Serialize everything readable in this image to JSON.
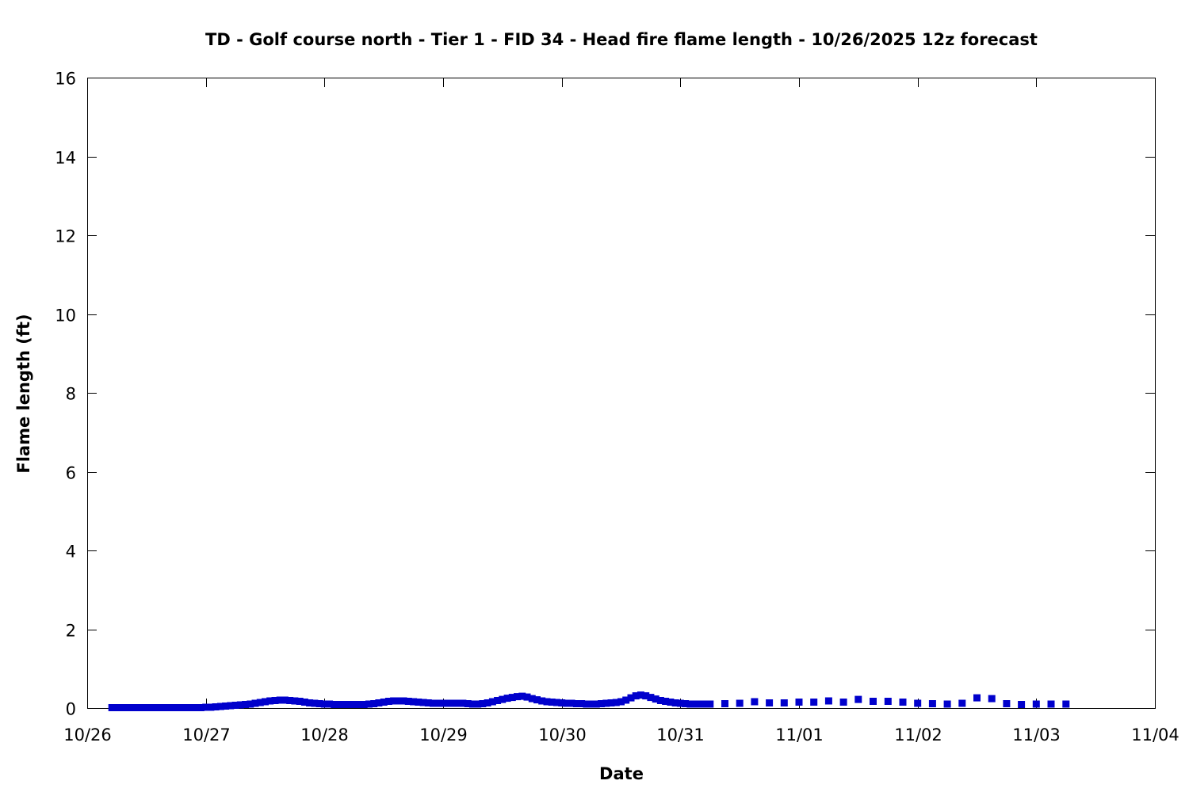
{
  "chart_data": {
    "type": "scatter",
    "title": "TD - Golf course north - Tier 1 - FID 34 - Head fire flame length - 10/26/2025 12z forecast",
    "xlabel": "Date",
    "ylabel": "Flame length (ft)",
    "x_tick_labels": [
      "10/26",
      "10/27",
      "10/28",
      "10/29",
      "10/30",
      "10/31",
      "11/01",
      "11/02",
      "11/03",
      "11/04"
    ],
    "y_tick_labels": [
      "0",
      "2",
      "4",
      "6",
      "8",
      "10",
      "12",
      "14",
      "16"
    ],
    "y_ticks": [
      0,
      2,
      4,
      6,
      8,
      10,
      12,
      14,
      16
    ],
    "xlim": [
      "2025-10-26 00:00",
      "2025-11-04 00:00"
    ],
    "ylim": [
      0,
      16
    ],
    "grid": false,
    "marker_color": "#0000cc",
    "series": [
      {
        "x": [
          "2025-10-26 05:00",
          "2025-10-26 06:00",
          "2025-10-26 07:00",
          "2025-10-26 08:00",
          "2025-10-26 09:00",
          "2025-10-26 10:00",
          "2025-10-26 11:00",
          "2025-10-26 12:00",
          "2025-10-26 13:00",
          "2025-10-26 14:00",
          "2025-10-26 15:00",
          "2025-10-26 16:00",
          "2025-10-26 17:00",
          "2025-10-26 18:00",
          "2025-10-26 19:00",
          "2025-10-26 20:00",
          "2025-10-26 21:00",
          "2025-10-26 22:00",
          "2025-10-26 23:00",
          "2025-10-27 00:00",
          "2025-10-27 01:00",
          "2025-10-27 02:00",
          "2025-10-27 03:00",
          "2025-10-27 04:00",
          "2025-10-27 05:00",
          "2025-10-27 06:00",
          "2025-10-27 07:00",
          "2025-10-27 08:00",
          "2025-10-27 09:00",
          "2025-10-27 10:00",
          "2025-10-27 11:00",
          "2025-10-27 12:00",
          "2025-10-27 13:00",
          "2025-10-27 14:00",
          "2025-10-27 15:00",
          "2025-10-27 16:00",
          "2025-10-27 17:00",
          "2025-10-27 18:00",
          "2025-10-27 19:00",
          "2025-10-27 20:00",
          "2025-10-27 21:00",
          "2025-10-27 22:00",
          "2025-10-27 23:00",
          "2025-10-28 00:00",
          "2025-10-28 01:00",
          "2025-10-28 02:00",
          "2025-10-28 03:00",
          "2025-10-28 04:00",
          "2025-10-28 05:00",
          "2025-10-28 06:00",
          "2025-10-28 07:00",
          "2025-10-28 08:00",
          "2025-10-28 09:00",
          "2025-10-28 10:00",
          "2025-10-28 11:00",
          "2025-10-28 12:00",
          "2025-10-28 13:00",
          "2025-10-28 14:00",
          "2025-10-28 15:00",
          "2025-10-28 16:00",
          "2025-10-28 17:00",
          "2025-10-28 18:00",
          "2025-10-28 19:00",
          "2025-10-28 20:00",
          "2025-10-28 21:00",
          "2025-10-28 22:00",
          "2025-10-28 23:00",
          "2025-10-29 00:00",
          "2025-10-29 01:00",
          "2025-10-29 02:00",
          "2025-10-29 03:00",
          "2025-10-29 04:00",
          "2025-10-29 05:00",
          "2025-10-29 06:00",
          "2025-10-29 07:00",
          "2025-10-29 08:00",
          "2025-10-29 09:00",
          "2025-10-29 10:00",
          "2025-10-29 11:00",
          "2025-10-29 12:00",
          "2025-10-29 13:00",
          "2025-10-29 14:00",
          "2025-10-29 15:00",
          "2025-10-29 16:00",
          "2025-10-29 17:00",
          "2025-10-29 18:00",
          "2025-10-29 19:00",
          "2025-10-29 20:00",
          "2025-10-29 21:00",
          "2025-10-29 22:00",
          "2025-10-29 23:00",
          "2025-10-30 00:00",
          "2025-10-30 01:00",
          "2025-10-30 02:00",
          "2025-10-30 03:00",
          "2025-10-30 04:00",
          "2025-10-30 05:00",
          "2025-10-30 06:00",
          "2025-10-30 07:00",
          "2025-10-30 08:00",
          "2025-10-30 09:00",
          "2025-10-30 10:00",
          "2025-10-30 11:00",
          "2025-10-30 12:00",
          "2025-10-30 13:00",
          "2025-10-30 14:00",
          "2025-10-30 15:00",
          "2025-10-30 16:00",
          "2025-10-30 17:00",
          "2025-10-30 18:00",
          "2025-10-30 19:00",
          "2025-10-30 20:00",
          "2025-10-30 21:00",
          "2025-10-30 22:00",
          "2025-10-30 23:00",
          "2025-10-31 00:00",
          "2025-10-31 01:00",
          "2025-10-31 02:00",
          "2025-10-31 03:00",
          "2025-10-31 04:00",
          "2025-10-31 05:00",
          "2025-10-31 06:00",
          "2025-10-31 09:00",
          "2025-10-31 12:00",
          "2025-10-31 15:00",
          "2025-10-31 18:00",
          "2025-10-31 21:00",
          "2025-11-01 00:00",
          "2025-11-01 03:00",
          "2025-11-01 06:00",
          "2025-11-01 09:00",
          "2025-11-01 12:00",
          "2025-11-01 15:00",
          "2025-11-01 18:00",
          "2025-11-01 21:00",
          "2025-11-02 00:00",
          "2025-11-02 03:00",
          "2025-11-02 06:00",
          "2025-11-02 09:00",
          "2025-11-02 12:00",
          "2025-11-02 15:00",
          "2025-11-02 18:00",
          "2025-11-02 21:00",
          "2025-11-03 00:00",
          "2025-11-03 03:00",
          "2025-11-03 06:00"
        ],
        "y": [
          0.01,
          0.01,
          0.01,
          0.01,
          0.01,
          0.01,
          0.01,
          0.01,
          0.01,
          0.01,
          0.01,
          0.01,
          0.01,
          0.01,
          0.01,
          0.01,
          0.01,
          0.01,
          0.01,
          0.02,
          0.02,
          0.03,
          0.04,
          0.05,
          0.06,
          0.07,
          0.08,
          0.09,
          0.1,
          0.12,
          0.14,
          0.16,
          0.18,
          0.19,
          0.2,
          0.2,
          0.19,
          0.18,
          0.17,
          0.15,
          0.13,
          0.12,
          0.11,
          0.1,
          0.1,
          0.09,
          0.09,
          0.09,
          0.09,
          0.09,
          0.09,
          0.09,
          0.1,
          0.11,
          0.13,
          0.15,
          0.17,
          0.18,
          0.18,
          0.18,
          0.17,
          0.16,
          0.15,
          0.14,
          0.13,
          0.12,
          0.12,
          0.12,
          0.12,
          0.12,
          0.12,
          0.12,
          0.11,
          0.1,
          0.1,
          0.11,
          0.13,
          0.16,
          0.19,
          0.22,
          0.25,
          0.27,
          0.29,
          0.3,
          0.28,
          0.24,
          0.21,
          0.18,
          0.16,
          0.15,
          0.14,
          0.13,
          0.12,
          0.12,
          0.11,
          0.11,
          0.1,
          0.1,
          0.1,
          0.11,
          0.12,
          0.13,
          0.14,
          0.16,
          0.2,
          0.26,
          0.31,
          0.33,
          0.31,
          0.27,
          0.23,
          0.19,
          0.17,
          0.15,
          0.13,
          0.12,
          0.11,
          0.1,
          0.1,
          0.1,
          0.1,
          0.1,
          0.11,
          0.12,
          0.16,
          0.13,
          0.13,
          0.15,
          0.15,
          0.18,
          0.15,
          0.22,
          0.17,
          0.17,
          0.15,
          0.12,
          0.11,
          0.1,
          0.12,
          0.26,
          0.24,
          0.11,
          0.09,
          0.1,
          0.1,
          0.1
        ]
      }
    ]
  }
}
